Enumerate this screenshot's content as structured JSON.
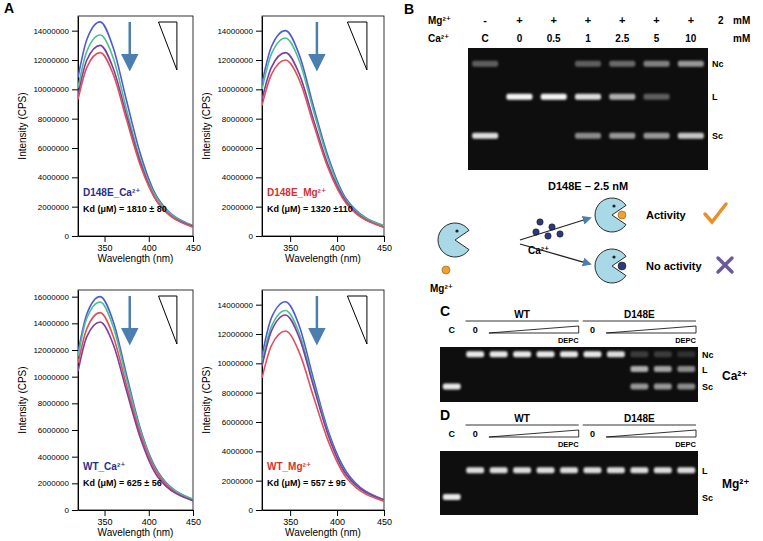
{
  "chart_data": [
    {
      "type": "line",
      "annotations": [
        "D148E_Ca²⁺",
        "Kd (μM) = 1810 ± 80"
      ],
      "x_label": "Wavelength (nm)",
      "y_label": "Intensity (CPS)",
      "x": [
        320,
        330,
        345,
        360,
        375,
        390,
        410,
        450
      ],
      "xlim": [
        320,
        450
      ],
      "xticks": [
        350,
        400,
        450
      ],
      "ylim": [
        0,
        15000000
      ],
      "yticks": [
        0,
        2000000,
        4000000,
        6000000,
        8000000,
        10000000,
        12000000,
        14000000
      ],
      "series": [
        {
          "color": "#4f5bd5",
          "values": [
            10800000,
            13400000,
            14600000,
            12800000,
            9200000,
            5700000,
            2600000,
            700000
          ]
        },
        {
          "color": "#4cbf8f",
          "values": [
            10100000,
            12600000,
            13700000,
            12100000,
            8600000,
            5300000,
            2500000,
            700000
          ]
        },
        {
          "color": "#7a3fa0",
          "values": [
            9600000,
            12000000,
            13000000,
            11400000,
            8200000,
            5100000,
            2300000,
            650000
          ]
        },
        {
          "color": "#e0505a",
          "values": [
            9300000,
            11500000,
            12500000,
            11000000,
            7900000,
            4900000,
            2300000,
            600000
          ]
        }
      ]
    },
    {
      "type": "line",
      "annotations": [
        "D148E_Mg²⁺",
        "Kd (μM) = 1320 ±110"
      ],
      "x_label": "Wavelength (nm)",
      "y_label": "Intensity (CPS)",
      "x": [
        320,
        330,
        345,
        360,
        375,
        390,
        410,
        450
      ],
      "xlim": [
        320,
        450
      ],
      "xticks": [
        350,
        400,
        450
      ],
      "ylim": [
        0,
        15000000
      ],
      "yticks": [
        0,
        2000000,
        4000000,
        6000000,
        8000000,
        10000000,
        12000000,
        14000000
      ],
      "series": [
        {
          "color": "#4f5bd5",
          "values": [
            10400000,
            12900000,
            14000000,
            12300000,
            8800000,
            5500000,
            2500000,
            700000
          ]
        },
        {
          "color": "#4cbf8f",
          "values": [
            10000000,
            12400000,
            13500000,
            11900000,
            8500000,
            5300000,
            2400000,
            700000
          ]
        },
        {
          "color": "#7a3fa0",
          "values": [
            9300000,
            11500000,
            12500000,
            11000000,
            7900000,
            4900000,
            2300000,
            600000
          ]
        },
        {
          "color": "#e0505a",
          "values": [
            8900000,
            11000000,
            12000000,
            10600000,
            7600000,
            4700000,
            2200000,
            600000
          ]
        }
      ]
    },
    {
      "type": "line",
      "annotations": [
        "WT_Ca²⁺",
        "Kd (μM) = 625 ± 56"
      ],
      "x_label": "Wavelength (nm)",
      "y_label": "Intensity (CPS)",
      "x": [
        320,
        330,
        345,
        360,
        375,
        390,
        410,
        450
      ],
      "xlim": [
        320,
        450
      ],
      "xticks": [
        350,
        400,
        450
      ],
      "ylim": [
        0,
        16500000
      ],
      "yticks": [
        0,
        2000000,
        4000000,
        6000000,
        8000000,
        10000000,
        12000000,
        14000000,
        16000000
      ],
      "series": [
        {
          "color": "#4f5bd5",
          "values": [
            11800000,
            14700000,
            16000000,
            14100000,
            10100000,
            6200000,
            2900000,
            800000
          ]
        },
        {
          "color": "#4cbf8f",
          "values": [
            11500000,
            14400000,
            15600000,
            13700000,
            9800000,
            6100000,
            2800000,
            800000
          ]
        },
        {
          "color": "#e0505a",
          "values": [
            11000000,
            13600000,
            14800000,
            13000000,
            9300000,
            5800000,
            2700000,
            700000
          ]
        },
        {
          "color": "#7a3fa0",
          "values": [
            10400000,
            13000000,
            14100000,
            12400000,
            8900000,
            5500000,
            2500000,
            700000
          ]
        }
      ]
    },
    {
      "type": "line",
      "annotations": [
        "WT_Mg²⁺",
        "Kd (μM) = 557 ± 95"
      ],
      "x_label": "Wavelength (nm)",
      "y_label": "Intensity (CPS)",
      "x": [
        320,
        330,
        345,
        360,
        375,
        390,
        410,
        450
      ],
      "xlim": [
        320,
        450
      ],
      "xticks": [
        350,
        400,
        450
      ],
      "ylim": [
        0,
        15000000
      ],
      "yticks": [
        0,
        2000000,
        4000000,
        6000000,
        8000000,
        10000000,
        12000000,
        14000000
      ],
      "series": [
        {
          "color": "#4f5bd5",
          "values": [
            10500000,
            13100000,
            14200000,
            12500000,
            8900000,
            5500000,
            2600000,
            700000
          ]
        },
        {
          "color": "#4cbf8f",
          "values": [
            10100000,
            12500000,
            13600000,
            12000000,
            8600000,
            5300000,
            2400000,
            700000
          ]
        },
        {
          "color": "#7a3fa0",
          "values": [
            9800000,
            12200000,
            13300000,
            11700000,
            8400000,
            5200000,
            2400000,
            700000
          ]
        },
        {
          "color": "#e0505a",
          "values": [
            9000000,
            11200000,
            12200000,
            10700000,
            7700000,
            4800000,
            2200000,
            600000
          ]
        }
      ]
    }
  ],
  "panel_labels": [
    "A",
    "B",
    "C",
    "D"
  ],
  "gel_b": {
    "mg_label": "Mg²⁺",
    "mg": [
      "-",
      "+",
      "+",
      "+",
      "+",
      "+",
      "+"
    ],
    "mg_conc": "2",
    "mg_unit": "mM",
    "ca_label": "Ca²⁺",
    "lanes": [
      "C",
      "0",
      "0.5",
      "1",
      "2.5",
      "5",
      "10"
    ],
    "ca_unit": "mM",
    "band_labels": [
      "Nc",
      "L",
      "Sc"
    ],
    "bands": [
      [
        0.35,
        0,
        0.9
      ],
      [
        0,
        1,
        0
      ],
      [
        0,
        1,
        0
      ],
      [
        0.35,
        0.9,
        0.55
      ],
      [
        0.4,
        0.7,
        0.6
      ],
      [
        0.5,
        0.35,
        0.6
      ],
      [
        0.6,
        0,
        0.8
      ]
    ],
    "caption": "D148E – 2.5 nM"
  },
  "cartoon": {
    "ions": [
      "Mg²⁺",
      "Ca²⁺"
    ],
    "outcomes": [
      "Activity",
      "No activity"
    ]
  },
  "gel_c": {
    "groups": [
      "WT",
      "D148E"
    ],
    "lane_labels": [
      "C",
      "0",
      null,
      null,
      null,
      null,
      "0",
      null,
      null,
      null,
      null
    ],
    "gradient_label": "DEPC",
    "ion": "Ca²⁺",
    "band_labels": [
      "Nc",
      "L",
      "Sc"
    ],
    "bands": [
      [
        0,
        0,
        0.95
      ],
      [
        0.95,
        0,
        0
      ],
      [
        0.95,
        0,
        0
      ],
      [
        0.95,
        0,
        0
      ],
      [
        0.95,
        0,
        0
      ],
      [
        0.95,
        0,
        0
      ],
      [
        0.95,
        0,
        0
      ],
      [
        0.9,
        0,
        0
      ],
      [
        0.2,
        0.7,
        0.6
      ],
      [
        0.2,
        0.65,
        0.6
      ],
      [
        0.15,
        0.55,
        0.55
      ]
    ]
  },
  "gel_d": {
    "groups": [
      "WT",
      "D148E"
    ],
    "lane_labels": [
      "C",
      "0",
      null,
      null,
      null,
      null,
      "0",
      null,
      null,
      null,
      null
    ],
    "gradient_label": "DEPC",
    "ion": "Mg²⁺",
    "band_labels": [
      "L",
      "Sc"
    ],
    "bands": [
      [
        0,
        0.95
      ],
      [
        0.9,
        0
      ],
      [
        0.9,
        0
      ],
      [
        0.9,
        0
      ],
      [
        0.9,
        0
      ],
      [
        0.9,
        0
      ],
      [
        0.9,
        0
      ],
      [
        0.9,
        0
      ],
      [
        0.9,
        0
      ],
      [
        0.9,
        0
      ],
      [
        0.9,
        0
      ]
    ]
  }
}
